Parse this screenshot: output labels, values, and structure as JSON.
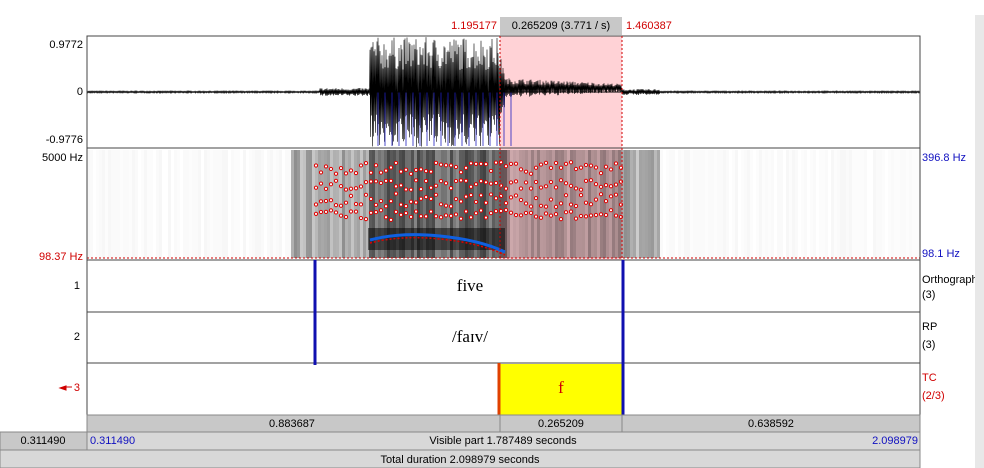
{
  "top_bar": {
    "selection_start": "1.195177",
    "selection_duration": "0.265209 (3.771 / s)",
    "selection_end": "1.460387"
  },
  "waveform": {
    "max_label": "0.9772",
    "zero_label": "0",
    "min_label": "-0.9776"
  },
  "spectrogram": {
    "top_label": "5000 Hz",
    "bottom_label": "98.37 Hz",
    "pitch_top_label": "396.8 Hz",
    "pitch_bottom_label": "98.1 Hz"
  },
  "tiers": [
    {
      "number": "1",
      "name": "Orthographic",
      "count": "(3)",
      "text": "five"
    },
    {
      "number": "2",
      "name": "RP",
      "count": "(3)",
      "text": "/faɪv/"
    },
    {
      "number": "3",
      "name": "TC",
      "count": "(2/3)",
      "text": "f"
    }
  ],
  "durations": [
    "0.883687",
    "0.265209",
    "0.638592"
  ],
  "status": {
    "left_time": "0.311490",
    "window_start": "0.311490",
    "visible_part": "Visible part 1.787489 seconds",
    "window_end": "2.098979",
    "total_duration": "Total duration 2.098979 seconds"
  }
}
